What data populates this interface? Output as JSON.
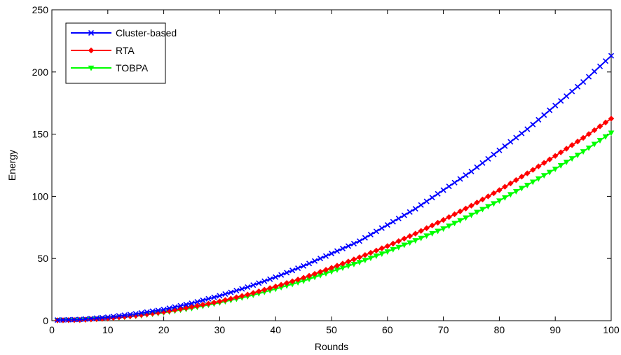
{
  "chart_data": {
    "type": "line",
    "title": "",
    "xlabel": "Rounds",
    "ylabel": "Energy",
    "xlim": [
      0,
      100
    ],
    "ylim": [
      0,
      250
    ],
    "xticks": [
      0,
      10,
      20,
      30,
      40,
      50,
      60,
      70,
      80,
      90,
      100
    ],
    "yticks": [
      0,
      50,
      100,
      150,
      200,
      250
    ],
    "grid": false,
    "legend_position": "top-left",
    "x": [
      1,
      5,
      10,
      15,
      20,
      25,
      30,
      35,
      40,
      45,
      50,
      55,
      60,
      65,
      70,
      75,
      80,
      85,
      90,
      95,
      100
    ],
    "series": [
      {
        "name": "Cluster-based",
        "color": "#0000ff",
        "marker": "x",
        "values": [
          0.5,
          1.0,
          2.8,
          5.5,
          9.0,
          14.0,
          20.0,
          27.0,
          35.0,
          44.0,
          54.0,
          64.0,
          77.0,
          90.0,
          105.0,
          120.0,
          137.0,
          154.0,
          173.0,
          192.0,
          213.0
        ]
      },
      {
        "name": "RTA",
        "color": "#ff0000",
        "marker": "diamond",
        "values": [
          0.3,
          0.6,
          1.8,
          4.0,
          7.0,
          11.0,
          15.5,
          21.0,
          27.5,
          34.5,
          42.5,
          51.0,
          60.0,
          70.0,
          81.0,
          92.5,
          105.0,
          118.5,
          132.5,
          147.0,
          162.5
        ]
      },
      {
        "name": "TOBPA",
        "color": "#00ff00",
        "marker": "triangle-down",
        "values": [
          0.3,
          0.6,
          1.7,
          3.7,
          6.5,
          10.0,
          14.5,
          19.5,
          25.5,
          32.0,
          39.5,
          47.0,
          55.5,
          64.5,
          74.0,
          85.0,
          96.5,
          109.0,
          122.0,
          136.0,
          151.0
        ]
      }
    ]
  }
}
